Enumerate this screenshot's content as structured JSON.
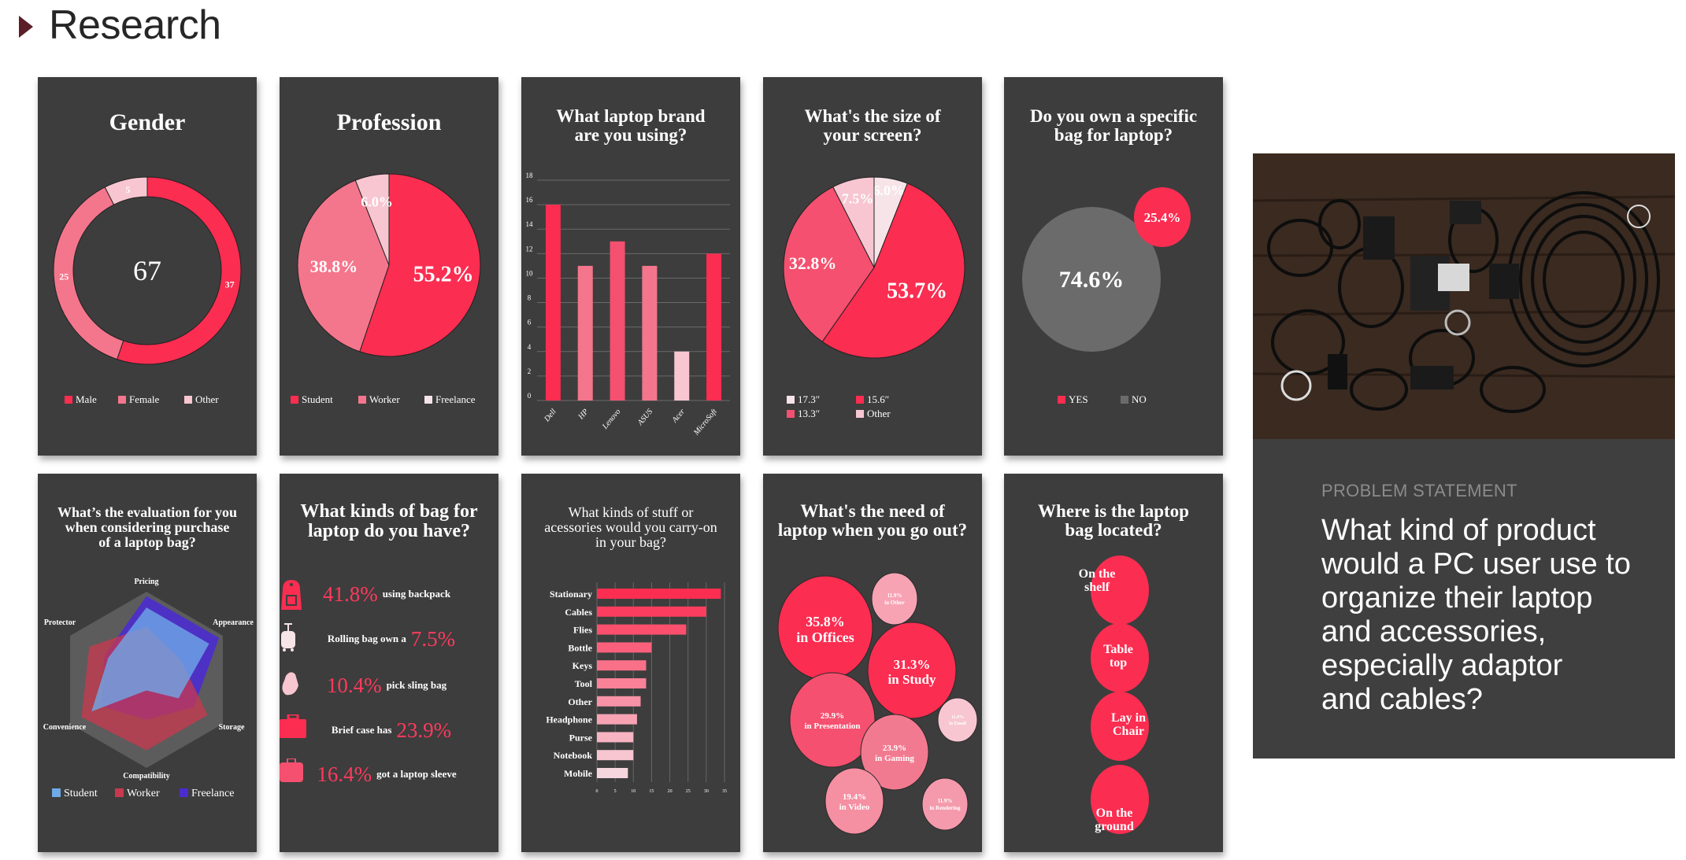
{
  "header": {
    "title": "Research"
  },
  "problem": {
    "label": "PROBLEM STATEMENT",
    "text": "What kind of product\nwould a PC user use to\norganize their laptop\nand accessories,\nespecially adaptor\nand cables?"
  },
  "colors": {
    "red": "#fb2d51",
    "pink": "#f4768c",
    "mid": "#f5506f",
    "light": "#f7c6d1",
    "white": "#f6e4e9",
    "gray": "#6b6b6b",
    "panel": "#3d3d3d"
  },
  "bag_types": {
    "title": "What kinds of bag for\nlaptop do you have?",
    "items": [
      {
        "pct": "41.8%",
        "text": "using backpack",
        "icon": "backpack-icon",
        "order": "pct-first"
      },
      {
        "pct": "7.5%",
        "text": "Rolling bag own a",
        "icon": "rolling-bag-icon",
        "order": "text-first"
      },
      {
        "pct": "10.4%",
        "text": "pick sling bag",
        "icon": "sling-bag-icon",
        "order": "pct-first"
      },
      {
        "pct": "23.9%",
        "text": "Brief case has",
        "icon": "briefcase-icon",
        "order": "text-first"
      },
      {
        "pct": "16.4%",
        "text": "got a laptop sleeve",
        "icon": "laptop-sleeve-icon",
        "order": "pct-first"
      }
    ]
  },
  "chart_data": [
    {
      "id": "gender",
      "type": "pie",
      "variant": "donut",
      "title": "Gender",
      "center_label": "67",
      "categories": [
        "Male",
        "Female",
        "Other"
      ],
      "values": [
        37,
        25,
        5
      ],
      "labels": [
        "37",
        "25",
        "5"
      ],
      "legend": "bottom"
    },
    {
      "id": "profession",
      "type": "pie",
      "title": "Profession",
      "categories": [
        "Student",
        "Worker",
        "Freelance"
      ],
      "values": [
        55.2,
        38.8,
        6.0
      ],
      "labels": [
        "55.2%",
        "38.8%",
        "6.0%"
      ],
      "legend": "bottom"
    },
    {
      "id": "brand",
      "type": "bar",
      "title": "What laptop brand\nare you using?",
      "categories": [
        "Dell",
        "HP",
        "Lenovo",
        "ASUS",
        "Acer",
        "MicroSoft"
      ],
      "values": [
        16,
        11,
        13,
        11,
        4,
        12
      ],
      "ylim": [
        0,
        18
      ],
      "yticks": [
        "0",
        "2",
        "4",
        "6",
        "8",
        "10",
        "12",
        "14",
        "16",
        "18"
      ],
      "grid": true
    },
    {
      "id": "screen",
      "type": "pie",
      "title": "What's the size of\nyour screen?",
      "categories": [
        "17.3″",
        "15.6″",
        "13.3″",
        "Other"
      ],
      "values": [
        6.0,
        53.7,
        32.8,
        7.5
      ],
      "labels": [
        "6.0%",
        "53.7%",
        "32.8%",
        "7.5%"
      ],
      "legend": "bottom"
    },
    {
      "id": "own_bag",
      "type": "scatter",
      "variant": "bubble",
      "title": "Do you own a specific\nbag for laptop?",
      "categories": [
        "YES",
        "NO"
      ],
      "values": [
        25.4,
        74.6
      ],
      "labels": [
        "25.4%",
        "74.6%"
      ],
      "legend": "bottom"
    },
    {
      "id": "evaluation",
      "type": "radar",
      "title": "What’s the evaluation for you\nwhen considering purchase\nof a laptop bag?",
      "axes": [
        "Pricing",
        "Appearance",
        "Storage",
        "Compatibility",
        "Convenience",
        "Protector"
      ],
      "series": [
        {
          "name": "Student",
          "values": [
            0.82,
            0.82,
            0.42,
            0.12,
            0.72,
            0.5
          ]
        },
        {
          "name": "Worker",
          "values": [
            0.6,
            0.45,
            0.8,
            0.8,
            0.85,
            0.75
          ]
        },
        {
          "name": "Freelance",
          "values": [
            0.95,
            0.95,
            0.62,
            0.45,
            0.6,
            0.55
          ]
        }
      ],
      "ylim": [
        0,
        1
      ],
      "legend": "bottom"
    },
    {
      "id": "accessories",
      "type": "bar",
      "orientation": "horizontal",
      "title": "What kinds of stuff or\nacessories would you carry-on\nin your bag?",
      "categories": [
        "Stationary",
        "Cables",
        "Flies",
        "Bottle",
        "Keys",
        "Tool",
        "Other",
        "Headphone",
        "Purse",
        "Notebook",
        "Mobile"
      ],
      "values": [
        34,
        30,
        24.5,
        15,
        13.5,
        13.5,
        12,
        11,
        10,
        10,
        8.5
      ],
      "xlim": [
        0,
        35
      ],
      "xticks": [
        "0",
        "5",
        "10",
        "15",
        "20",
        "25",
        "30",
        "35"
      ],
      "grid": true
    },
    {
      "id": "need",
      "type": "scatter",
      "variant": "bubble",
      "title": "What's the need of\nlaptop when you go out?",
      "categories": [
        "in Offices",
        "in Other",
        "in Study",
        "in Presentation",
        "in Email",
        "in Gaming",
        "in Video",
        "in Rendering"
      ],
      "values": [
        35.8,
        11.9,
        31.3,
        29.9,
        11.9,
        23.9,
        19.4,
        11.9
      ],
      "labels": [
        "35.8%",
        "11.9%",
        "31.3%",
        "29.9%",
        "11.9%",
        "23.9%",
        "19.4%",
        "11.9%"
      ]
    },
    {
      "id": "location",
      "type": "scatter",
      "variant": "bubble",
      "title": "Where is the laptop\nbag located?",
      "categories": [
        "On the\nshelf",
        "Table\ntop",
        "Lay in\nChair",
        "On the\nground"
      ]
    }
  ]
}
